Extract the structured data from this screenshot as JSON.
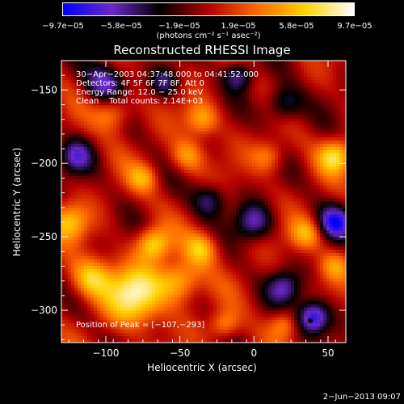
{
  "chart_data": {
    "type": "heatmap",
    "title": "Reconstructed RHESSI Image",
    "xlabel": "Heliocentric X (arcsec)",
    "ylabel": "Heliocentric Y (arcsec)",
    "xlim": [
      -130,
      62
    ],
    "ylim": [
      -322,
      -130
    ],
    "xticks": [
      -100,
      -50,
      0,
      50
    ],
    "yticks": [
      -150,
      -200,
      -250,
      -300
    ],
    "xtick_labels": [
      "−100",
      "−50",
      "0",
      "50"
    ],
    "ytick_labels": [
      "−150",
      "−200",
      "−250",
      "−300"
    ],
    "colorbar": {
      "range": [
        -9.7e-05,
        9.7e-05
      ],
      "tick_labels": [
        "−9.7e−05",
        "−5.8e−05",
        "−1.9e−05",
        "1.9e−05",
        "5.8e−05",
        "9.7e−05"
      ],
      "colormap": [
        "#0000ff",
        "#6a28c8",
        "#000000",
        "#b40000",
        "#ff6a00",
        "#ffd200",
        "#ffffff"
      ],
      "unit_label": "(photons cm⁻² s⁻¹ asec⁻²)"
    },
    "annotations": {
      "time_range": "30−Apr−2003 04:37:48.000 to 04:41:52.000",
      "detectors": "Detectors: 4F 5F 6F 7F 8F, Att 0",
      "energy_range": "Energy Range: 12.0 − 25.0 keV",
      "method_counts": "Clean    Total counts: 2.14E+03",
      "peak_position": "Position of Peak = [−107,−293]"
    },
    "grid": false,
    "sources": [
      {
        "x": -125,
        "y": -240,
        "v": 0.6,
        "s": 9
      },
      {
        "x": -80,
        "y": -290,
        "v": 0.9,
        "s": 14
      },
      {
        "x": -110,
        "y": -278,
        "v": 0.7,
        "s": 10
      },
      {
        "x": -50,
        "y": -280,
        "v": 0.7,
        "s": 10
      },
      {
        "x": -68,
        "y": -255,
        "v": 0.75,
        "s": 8
      },
      {
        "x": -35,
        "y": -258,
        "v": 0.6,
        "s": 8
      },
      {
        "x": -95,
        "y": -165,
        "v": 0.55,
        "s": 9
      },
      {
        "x": -35,
        "y": -170,
        "v": 0.55,
        "s": 8
      },
      {
        "x": -45,
        "y": -195,
        "v": 0.5,
        "s": 8
      },
      {
        "x": 55,
        "y": -195,
        "v": 0.7,
        "s": 8
      },
      {
        "x": 10,
        "y": -195,
        "v": 0.45,
        "s": 8
      },
      {
        "x": -20,
        "y": -310,
        "v": 0.5,
        "s": 7
      },
      {
        "x": 20,
        "y": -310,
        "v": 0.45,
        "s": 7
      },
      {
        "x": 35,
        "y": -248,
        "v": 0.55,
        "s": 8
      },
      {
        "x": 55,
        "y": -270,
        "v": 0.4,
        "s": 7
      },
      {
        "x": -75,
        "y": -210,
        "v": 0.45,
        "s": 7
      },
      {
        "x": 40,
        "y": -305,
        "v": -1.0,
        "s": 8
      },
      {
        "x": 55,
        "y": -240,
        "v": -0.8,
        "s": 8
      },
      {
        "x": -100,
        "y": -145,
        "v": -0.7,
        "s": 10
      },
      {
        "x": 20,
        "y": -160,
        "v": -0.6,
        "s": 9
      },
      {
        "x": -10,
        "y": -140,
        "v": -0.6,
        "s": 7
      },
      {
        "x": -120,
        "y": -195,
        "v": -0.6,
        "s": 8
      },
      {
        "x": 0,
        "y": -240,
        "v": -0.65,
        "s": 9
      },
      {
        "x": -30,
        "y": -225,
        "v": -0.55,
        "s": 8
      },
      {
        "x": 20,
        "y": -285,
        "v": -0.6,
        "s": 8
      },
      {
        "x": -60,
        "y": -145,
        "v": -0.5,
        "s": 7
      }
    ]
  },
  "footer": {
    "date": "2−Jun−2013 09:07"
  }
}
